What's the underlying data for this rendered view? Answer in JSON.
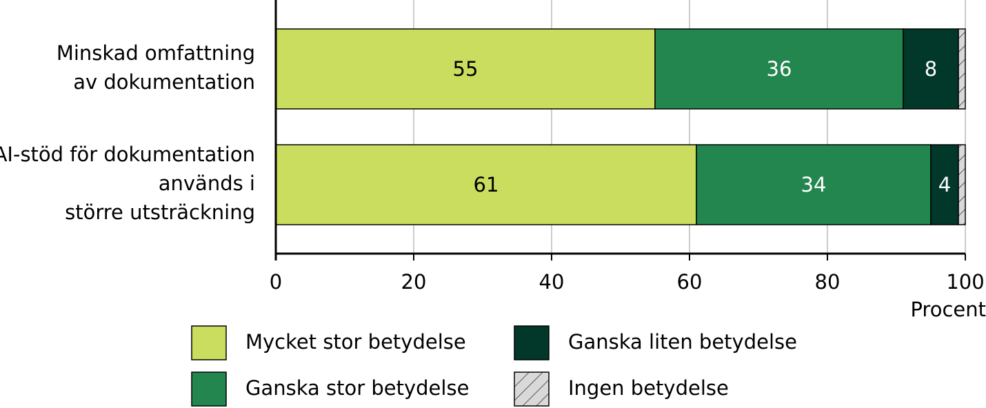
{
  "chart_data": {
    "type": "stacked_bar_horizontal",
    "categories": [
      [
        "Minskad omfattning",
        "av dokumentation"
      ],
      [
        "AI-stöd för dokumentation",
        "används i",
        "större utsträckning"
      ]
    ],
    "series": [
      {
        "name": "Mycket stor betydelse",
        "color": "#cadd5f",
        "label_color": "#000000",
        "show_labels": true,
        "values": [
          55,
          61
        ]
      },
      {
        "name": "Ganska stor betydelse",
        "color": "#23864f",
        "label_color": "#ffffff",
        "show_labels": true,
        "values": [
          36,
          34
        ]
      },
      {
        "name": "Ganska liten betydelse",
        "color": "#02382a",
        "label_color": "#ffffff",
        "show_labels": true,
        "values": [
          8,
          4
        ]
      },
      {
        "name": "Ingen betydelse",
        "color": "#d9d9d9",
        "hatch": true,
        "show_labels": false,
        "values": [
          1,
          1
        ]
      }
    ],
    "x_label": "Procent",
    "xlim": [
      0,
      100
    ],
    "xticks": [
      0,
      20,
      40,
      60,
      80,
      100
    ],
    "grid": true
  }
}
